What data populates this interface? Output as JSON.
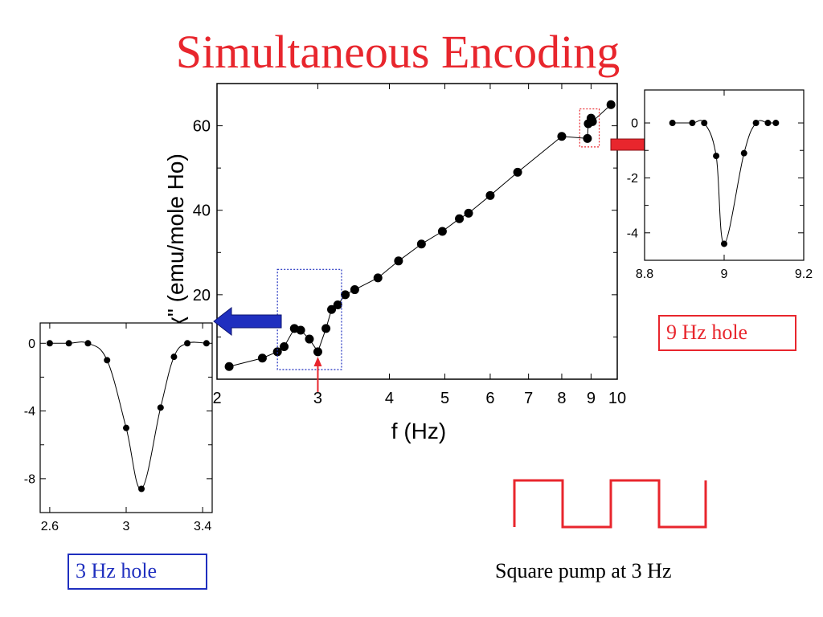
{
  "slide": {
    "title": "Simultaneous Encoding",
    "label_3hz": "3 Hz hole",
    "label_9hz": "9 Hz hole",
    "pump_caption": "Square pump at 3 Hz"
  },
  "colors": {
    "title": "#e8262d",
    "red_box": "#e8262d",
    "blue_box": "#1f2fbf",
    "blue_arrow": "#1f2fbf",
    "red_arrow": "#e8262d",
    "pump_wave": "#e8262d",
    "dot": "#000000"
  },
  "chart_data": [
    {
      "id": "main",
      "type": "scatter",
      "xscale": "log",
      "xlim": [
        2,
        10
      ],
      "ylim": [
        0,
        70
      ],
      "xlabel": "f (Hz)",
      "ylabel": "χ\" (emu/mole Ho)",
      "xticks": [
        2,
        3,
        4,
        5,
        6,
        7,
        8,
        9,
        10
      ],
      "xtick_labels": [
        "2",
        "3",
        "4",
        "5",
        "6",
        "7",
        "8",
        "9",
        "10"
      ],
      "yticks": [
        20,
        40,
        60
      ],
      "ytick_labels": [
        "20",
        "40",
        "60"
      ],
      "series": [
        {
          "points": [
            [
              2.1,
              3.0
            ],
            [
              2.4,
              5.0
            ],
            [
              2.55,
              6.5
            ],
            [
              2.62,
              7.7
            ],
            [
              2.73,
              12.0
            ],
            [
              2.8,
              11.6
            ],
            [
              2.9,
              9.5
            ],
            [
              3.0,
              6.5
            ],
            [
              3.1,
              12.0
            ],
            [
              3.17,
              16.5
            ],
            [
              3.25,
              17.6
            ],
            [
              3.35,
              20.0
            ],
            [
              3.48,
              21.2
            ],
            [
              3.82,
              24.0
            ],
            [
              4.15,
              28.0
            ],
            [
              4.55,
              32.0
            ],
            [
              4.95,
              35.0
            ],
            [
              5.3,
              38.0
            ],
            [
              5.5,
              39.3
            ],
            [
              6.0,
              43.5
            ],
            [
              6.7,
              49.0
            ],
            [
              8.0,
              57.5
            ],
            [
              8.87,
              57.0
            ],
            [
              8.9,
              60.5
            ],
            [
              9.0,
              61.8
            ],
            [
              9.05,
              61.0
            ],
            [
              9.75,
              65.0
            ]
          ]
        }
      ],
      "annotations": {
        "blue_box_x": [
          2.55,
          3.3
        ],
        "blue_box_y": [
          0,
          26
        ],
        "red_box_x": [
          8.6,
          9.3
        ],
        "red_box_y": [
          55,
          64
        ],
        "hole_marker_x": 3.0
      }
    },
    {
      "id": "inset_9hz",
      "type": "scatter",
      "xlim": [
        8.8,
        9.2
      ],
      "ylim": [
        -5,
        1.2
      ],
      "xticks": [
        8.8,
        9.0,
        9.2
      ],
      "xtick_labels": [
        "8.8",
        "9",
        "9.2"
      ],
      "yticks": [
        0,
        -2,
        -4
      ],
      "ytick_labels": [
        "0",
        "-2",
        "-4"
      ],
      "series": [
        {
          "points": [
            [
              8.87,
              0
            ],
            [
              8.92,
              0
            ],
            [
              8.95,
              0
            ],
            [
              8.98,
              -1.2
            ],
            [
              9.0,
              -4.4
            ],
            [
              9.05,
              -1.1
            ],
            [
              9.08,
              0
            ],
            [
              9.11,
              0
            ],
            [
              9.13,
              0
            ]
          ]
        }
      ]
    },
    {
      "id": "inset_3hz",
      "type": "scatter",
      "xlim": [
        2.55,
        3.45
      ],
      "ylim": [
        -10,
        1.2
      ],
      "xticks": [
        2.6,
        3.0,
        3.4
      ],
      "xtick_labels": [
        "2.6",
        "3",
        "3.4"
      ],
      "yticks": [
        0,
        -4,
        -8
      ],
      "ytick_labels": [
        "0",
        "-4",
        "-8"
      ],
      "series": [
        {
          "points": [
            [
              2.6,
              0
            ],
            [
              2.7,
              0
            ],
            [
              2.8,
              0
            ],
            [
              2.9,
              -1.0
            ],
            [
              3.0,
              -5.0
            ],
            [
              3.08,
              -8.6
            ],
            [
              3.18,
              -3.8
            ],
            [
              3.25,
              -0.8
            ],
            [
              3.32,
              0
            ],
            [
              3.42,
              0
            ]
          ]
        }
      ]
    }
  ]
}
